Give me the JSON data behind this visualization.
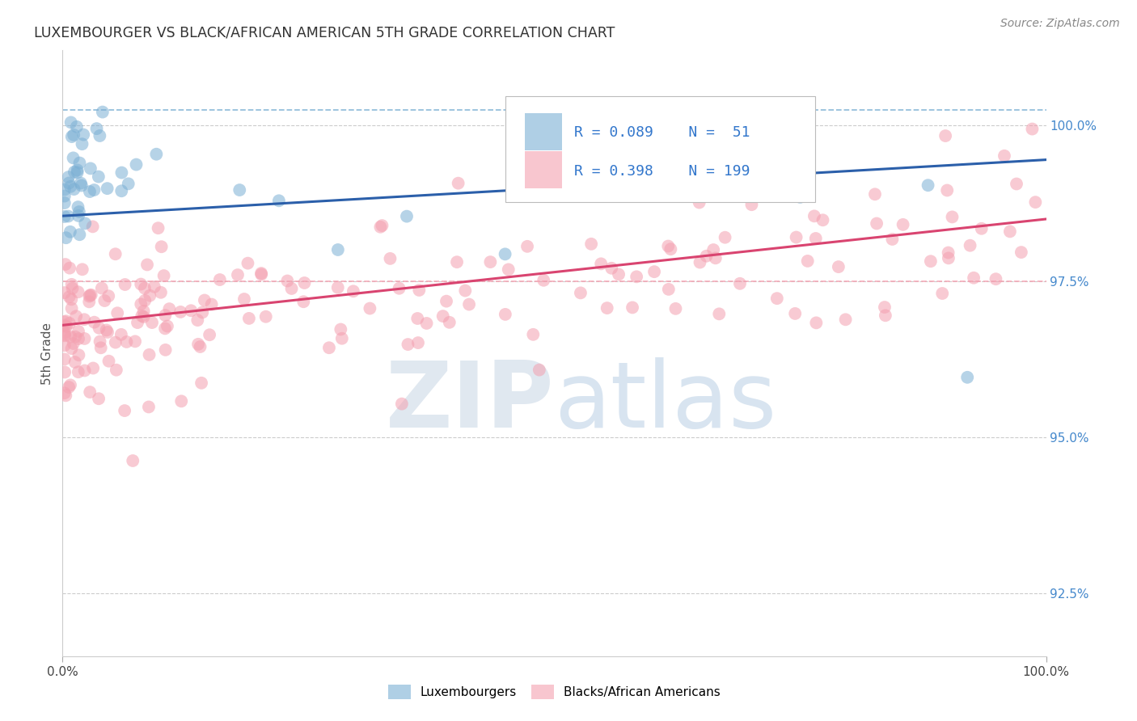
{
  "title": "LUXEMBOURGER VS BLACK/AFRICAN AMERICAN 5TH GRADE CORRELATION CHART",
  "source": "Source: ZipAtlas.com",
  "ylabel": "5th Grade",
  "xlim": [
    0,
    100
  ],
  "ylim": [
    91.5,
    101.2
  ],
  "yticks": [
    92.5,
    95.0,
    97.5,
    100.0
  ],
  "ytick_labels": [
    "92.5%",
    "95.0%",
    "97.5%",
    "100.0%"
  ],
  "legend_r_blue": "R = 0.089",
  "legend_n_blue": "N =  51",
  "legend_r_pink": "R = 0.398",
  "legend_n_pink": "N = 199",
  "blue_color": "#7bafd4",
  "pink_color": "#f4a0b0",
  "blue_line_color": "#2b5faa",
  "pink_line_color": "#d94470",
  "blue_dashed_y": 100.25,
  "pink_dashed_y": 97.5,
  "blue_line_y0": 98.55,
  "blue_line_y1": 99.45,
  "pink_line_y0": 96.8,
  "pink_line_y1": 98.5,
  "background_color": "#ffffff",
  "grid_color": "#cccccc",
  "watermark_color": "#e0e8f0"
}
